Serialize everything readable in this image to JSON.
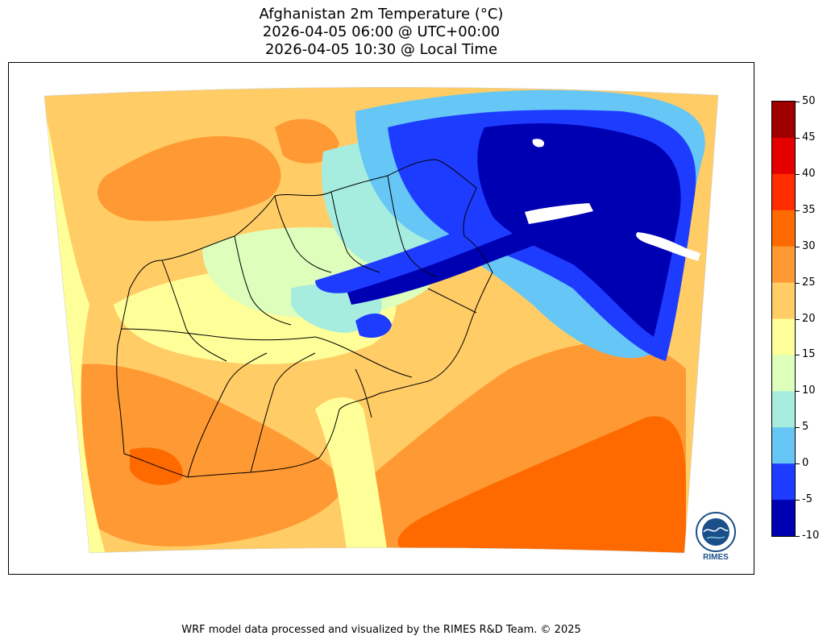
{
  "title": {
    "line1": "Afghanistan 2m Temperature (°C)",
    "line2": "2026-04-05 06:00 @ UTC+00:00",
    "line3": "2026-04-05 10:30 @ Local Time"
  },
  "colorbar": {
    "ticks": [
      "50",
      "45",
      "40",
      "35",
      "30",
      "25",
      "20",
      "15",
      "10",
      "5",
      "0",
      "-5",
      "-10"
    ],
    "colors": [
      "#9e0000",
      "#e50000",
      "#ff2c00",
      "#ff6a00",
      "#ff9933",
      "#ffcc66",
      "#ffff99",
      "#ddffbb",
      "#a6ede0",
      "#66c6f5",
      "#1e3cff",
      "#0000b3"
    ]
  },
  "logo": {
    "text": "RIMES"
  },
  "footer": "WRF model data processed and visualized by the RIMES R&D Team. © 2025"
}
